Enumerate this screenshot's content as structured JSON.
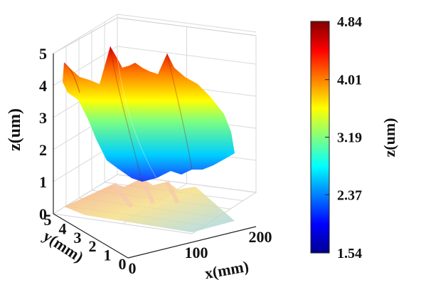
{
  "chart_data": {
    "type": "surface3d",
    "title": "",
    "xlabel": "x(mm)",
    "ylabel": "y(mm)",
    "zlabel": "z(um)",
    "xlim": [
      0,
      200
    ],
    "ylim": [
      0,
      5
    ],
    "zlim": [
      0,
      5
    ],
    "x_ticks": [
      "0",
      "100",
      "200"
    ],
    "y_ticks": [
      "0",
      "1",
      "2",
      "3",
      "4",
      "5"
    ],
    "z_ticks": [
      "0",
      "1",
      "2",
      "3",
      "4",
      "5"
    ],
    "grid": true,
    "colormap": "jet",
    "projection_on_floor": true,
    "colorbar": {
      "label": "z(um)",
      "min": 1.54,
      "max": 4.84,
      "ticks": [
        "1.54",
        "2.37",
        "3.19",
        "4.01",
        "4.84"
      ],
      "tick_values": [
        1.54,
        2.37,
        3.19,
        4.01,
        4.84
      ]
    },
    "surface_profile": {
      "x": [
        0,
        10,
        20,
        30,
        40,
        50,
        60,
        70,
        80,
        90,
        100,
        110,
        120,
        130,
        140,
        150,
        160,
        170,
        180,
        190,
        200
      ],
      "z_at_y5": [
        4.6,
        4.3,
        4.2,
        4.0,
        3.9,
        4.84,
        4.5,
        4.3,
        4.1,
        4.0,
        3.8,
        4.0,
        4.5,
        4.2,
        4.0,
        3.8,
        3.6,
        3.4,
        3.2,
        3.0,
        2.8
      ],
      "z_at_y0": [
        2.3,
        2.1,
        2.2,
        2.0,
        1.9,
        2.1,
        1.8,
        1.9,
        1.7,
        1.8,
        1.6,
        1.7,
        1.9,
        1.7,
        1.6,
        1.7,
        1.55,
        1.6,
        1.7,
        1.6,
        1.54
      ]
    }
  },
  "colors": {
    "axis": "#222222",
    "grid": "#d9d9d9"
  }
}
